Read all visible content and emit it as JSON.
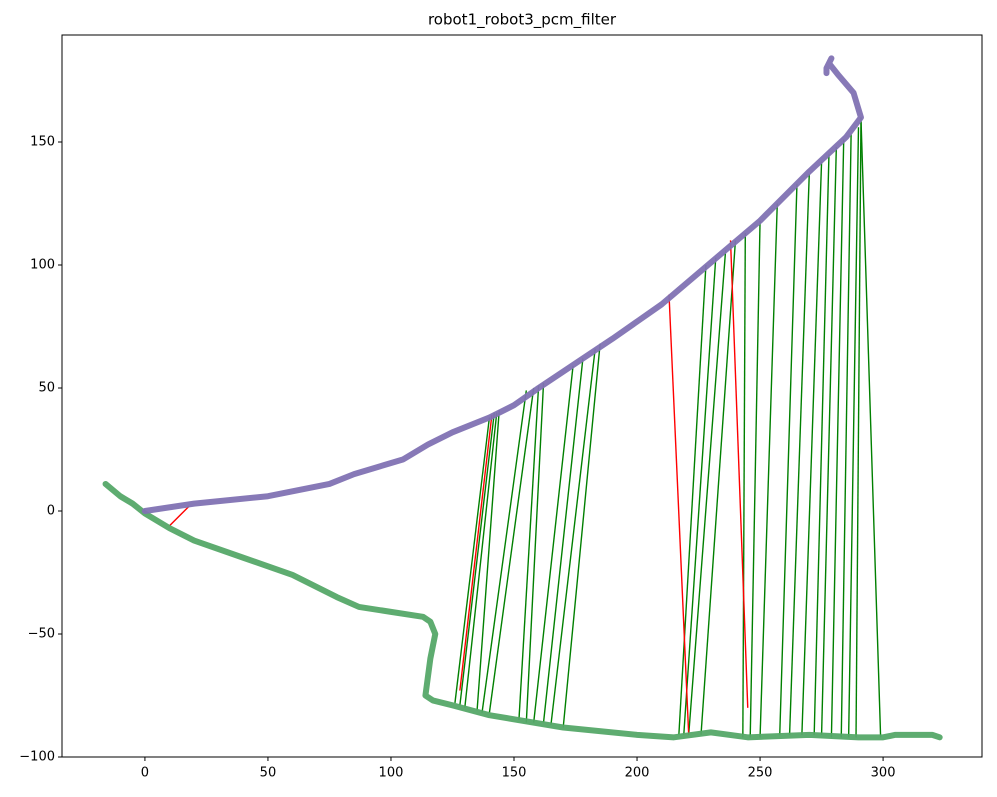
{
  "chart_data": {
    "type": "line",
    "title": "robot1_robot3_pcm_filter",
    "xlim": [
      -33.7,
      340.2
    ],
    "ylim": [
      -100,
      193.5
    ],
    "xticks": [
      0,
      50,
      100,
      150,
      200,
      250,
      300
    ],
    "yticks": [
      {
        "value": -100,
        "label": "−100"
      },
      {
        "value": -50,
        "label": "−50"
      },
      0,
      50,
      100,
      150
    ],
    "series": [
      {
        "color": "#55a868",
        "x": [
          -16,
          -10,
          -5,
          0,
          10,
          20,
          40,
          60,
          78,
          87,
          100,
          113,
          116,
          118,
          116,
          114,
          117,
          125,
          140,
          170,
          200,
          215,
          230,
          245,
          270,
          290,
          300,
          305,
          320,
          323
        ],
        "y": [
          11,
          6,
          3,
          -1,
          -7,
          -12,
          -19,
          -26,
          -35,
          -39,
          -41,
          -43,
          -45,
          -50,
          -60,
          -75,
          -77,
          -79,
          -83,
          -88,
          -91,
          -92,
          -90,
          -92,
          -91,
          -92,
          -92,
          -91,
          -91,
          -92
        ]
      },
      {
        "color": "#8172b3",
        "x": [
          0,
          20,
          50,
          75,
          85,
          105,
          115,
          125,
          140,
          150,
          160,
          175,
          190,
          210,
          230,
          250,
          270,
          285,
          291,
          288,
          282,
          278,
          279,
          277,
          277
        ],
        "y": [
          0,
          3,
          6,
          11,
          15,
          21,
          27,
          32,
          38,
          43,
          50,
          60,
          70,
          84,
          101,
          118,
          138,
          152,
          160,
          170,
          177,
          182,
          184,
          180,
          178
        ]
      }
    ],
    "matches": [
      {
        "color": "green",
        "x": [
          126,
          140
        ],
        "y": [
          -78,
          38
        ]
      },
      {
        "color": "green",
        "x": [
          128,
          142
        ],
        "y": [
          -79,
          40
        ]
      },
      {
        "color": "green",
        "x": [
          130,
          143
        ],
        "y": [
          -80,
          40
        ]
      },
      {
        "color": "green",
        "x": [
          135,
          144
        ],
        "y": [
          -81,
          41
        ]
      },
      {
        "color": "green",
        "x": [
          137,
          155
        ],
        "y": [
          -82,
          49
        ]
      },
      {
        "color": "green",
        "x": [
          140,
          158
        ],
        "y": [
          -82,
          50
        ]
      },
      {
        "color": "green",
        "x": [
          152,
          160
        ],
        "y": [
          -85,
          51
        ]
      },
      {
        "color": "green",
        "x": [
          155,
          162
        ],
        "y": [
          -86,
          52
        ]
      },
      {
        "color": "green",
        "x": [
          158,
          174
        ],
        "y": [
          -86,
          59
        ]
      },
      {
        "color": "green",
        "x": [
          162,
          178
        ],
        "y": [
          -86,
          62
        ]
      },
      {
        "color": "green",
        "x": [
          165,
          183
        ],
        "y": [
          -87,
          66
        ]
      },
      {
        "color": "green",
        "x": [
          170,
          185
        ],
        "y": [
          -88,
          68
        ]
      },
      {
        "color": "green",
        "x": [
          217,
          228
        ],
        "y": [
          -91,
          100
        ]
      },
      {
        "color": "green",
        "x": [
          219,
          232
        ],
        "y": [
          -91,
          103
        ]
      },
      {
        "color": "green",
        "x": [
          221,
          236
        ],
        "y": [
          -91,
          106
        ]
      },
      {
        "color": "green",
        "x": [
          226,
          240
        ],
        "y": [
          -91,
          110
        ]
      },
      {
        "color": "green",
        "x": [
          243,
          244
        ],
        "y": [
          -92,
          113
        ]
      },
      {
        "color": "green",
        "x": [
          246,
          250
        ],
        "y": [
          -92,
          118
        ]
      },
      {
        "color": "green",
        "x": [
          250,
          257
        ],
        "y": [
          -92,
          125
        ]
      },
      {
        "color": "green",
        "x": [
          258,
          265
        ],
        "y": [
          -91,
          133
        ]
      },
      {
        "color": "green",
        "x": [
          262,
          270
        ],
        "y": [
          -91,
          137
        ]
      },
      {
        "color": "green",
        "x": [
          267,
          275
        ],
        "y": [
          -91,
          142
        ]
      },
      {
        "color": "green",
        "x": [
          272,
          278
        ],
        "y": [
          -91,
          145
        ]
      },
      {
        "color": "green",
        "x": [
          275,
          281
        ],
        "y": [
          -91,
          148
        ]
      },
      {
        "color": "green",
        "x": [
          279,
          284
        ],
        "y": [
          -92,
          151
        ]
      },
      {
        "color": "green",
        "x": [
          283,
          287
        ],
        "y": [
          -92,
          153
        ]
      },
      {
        "color": "green",
        "x": [
          286,
          290
        ],
        "y": [
          -92,
          156
        ]
      },
      {
        "color": "green",
        "x": [
          289,
          291
        ],
        "y": [
          -92,
          158
        ]
      },
      {
        "color": "green",
        "x": [
          299,
          291
        ],
        "y": [
          -92,
          160
        ]
      },
      {
        "color": "red",
        "x": [
          10,
          18
        ],
        "y": [
          -6,
          2
        ]
      },
      {
        "color": "red",
        "x": [
          128,
          141
        ],
        "y": [
          -73,
          39
        ]
      },
      {
        "color": "red",
        "x": [
          213,
          221
        ],
        "y": [
          88,
          -91
        ]
      },
      {
        "color": "red",
        "x": [
          238,
          245
        ],
        "y": [
          110,
          -80
        ]
      }
    ]
  }
}
